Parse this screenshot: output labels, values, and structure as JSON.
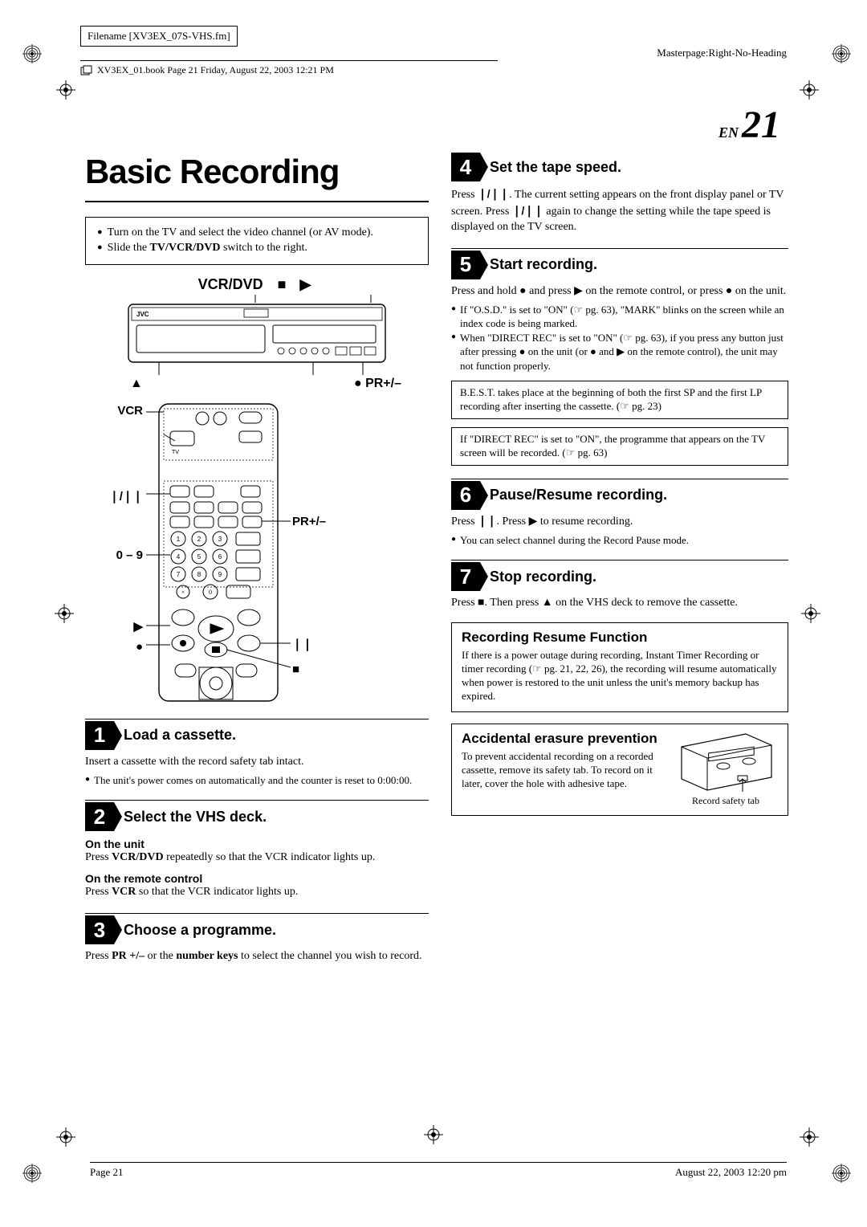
{
  "header": {
    "filename": "Filename [XV3EX_07S-VHS.fm]",
    "masterpage": "Masterpage:Right-No-Heading",
    "breadcrumb": "XV3EX_01.book  Page 21  Friday, August 22, 2003  12:21 PM"
  },
  "page": {
    "lang": "EN",
    "number": "21"
  },
  "title": "Basic Recording",
  "intro": [
    "Turn on the TV and select the video channel (or AV mode).",
    "Slide the <b>TV/VCR/DVD</b> switch to the right."
  ],
  "device_labels": {
    "top": "VCR/DVD",
    "top_symbols": "■ ▶",
    "bottom_left": "▲",
    "bottom_right": "●  PR+/–",
    "remote": {
      "vcr": "VCR",
      "speed": "❘/❘❘",
      "nums": "0 – 9",
      "play": "▶",
      "rec": "●",
      "pr": "PR+/–",
      "pause": "❘❘",
      "stop": "■"
    }
  },
  "steps": [
    {
      "n": "1",
      "title": "Load a cassette.",
      "body": "Insert a cassette with the record safety tab intact.",
      "bullets": [
        "The unit's power comes on automatically and the counter is reset to 0:00:00."
      ]
    },
    {
      "n": "2",
      "title": "Select the VHS deck.",
      "sub": [
        {
          "h": "On the unit",
          "t": "Press <b>VCR/DVD</b> repeatedly so that the VCR indicator lights up."
        },
        {
          "h": "On the remote control",
          "t": "Press <b>VCR</b> so that the VCR indicator lights up."
        }
      ]
    },
    {
      "n": "3",
      "title": "Choose a programme.",
      "body": "Press <b>PR +/–</b> or the <b>number keys</b> to select the channel you wish to record."
    },
    {
      "n": "4",
      "title": "Set the tape speed.",
      "body": "Press <b class='sym-inline'>❘/❘❘</b>. The current setting appears on the front display panel or TV screen. Press <b class='sym-inline'>❘/❘❘</b> again to change the setting while the tape speed is displayed on the TV screen."
    },
    {
      "n": "5",
      "title": "Start recording.",
      "body": "Press and hold ● and press ▶ on the remote control, or press ● on the unit.",
      "bullets": [
        "If \"O.S.D.\" is set to \"ON\" (☞ pg. 63), \"MARK\" blinks on the screen while an index code is being marked.",
        "When \"DIRECT REC\" is set to \"ON\" (☞ pg. 63), if you press any button just after pressing ● on the unit (or ● and ▶ on the remote control), the unit may not function properly."
      ],
      "notes": [
        "B.E.S.T. takes place at the beginning of both the first SP and the first LP recording after inserting the cassette. (☞ pg. 23)",
        "If \"DIRECT REC\" is set to \"ON\", the programme that appears on the TV screen will be recorded. (☞ pg. 63)"
      ]
    },
    {
      "n": "6",
      "title": "Pause/Resume recording.",
      "body": "Press <b>❘❘</b>. Press ▶ to resume recording.",
      "bullets": [
        "You can select channel during the Record Pause mode."
      ]
    },
    {
      "n": "7",
      "title": "Stop recording.",
      "body": "Press ■. Then press ▲ on the VHS deck to remove the cassette."
    }
  ],
  "resume": {
    "title": "Recording Resume Function",
    "body": "If there is a power outage during recording, Instant Timer Recording or timer recording (☞ pg. 21, 22, 26), the recording will resume automatically when power is restored to the unit unless the unit's memory backup has expired."
  },
  "erasure": {
    "title": "Accidental erasure prevention",
    "body": "To prevent accidental recording on a recorded cassette, remove its safety tab. To record on it later, cover the hole with adhesive tape.",
    "caption": "Record safety tab"
  },
  "footer": {
    "left": "Page 21",
    "right": "August 22, 2003 12:20 pm"
  },
  "colors": {
    "black": "#000000",
    "white": "#ffffff"
  }
}
